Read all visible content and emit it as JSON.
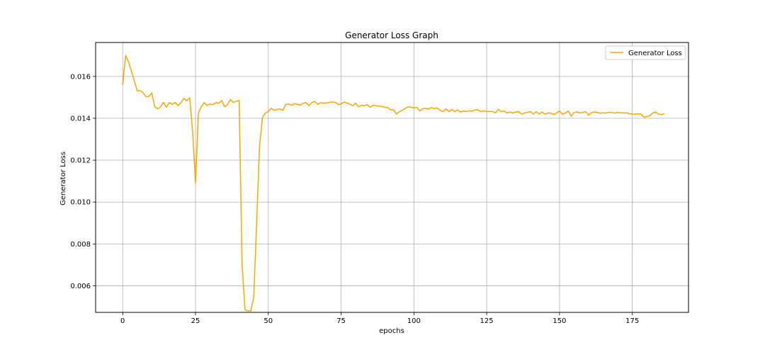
{
  "chart_data": {
    "type": "line",
    "title": "Generator Loss Graph",
    "xlabel": "epochs",
    "ylabel": "Generator Loss",
    "xlim": [
      -9.3,
      194.3
    ],
    "ylim": [
      0.00473,
      0.01762
    ],
    "xticks": [
      0,
      25,
      50,
      75,
      100,
      125,
      150,
      175
    ],
    "xtick_labels": [
      "0",
      "25",
      "50",
      "75",
      "100",
      "125",
      "150",
      "175"
    ],
    "yticks": [
      0.006,
      0.008,
      0.01,
      0.012,
      0.014,
      0.016
    ],
    "ytick_labels": [
      "0.006",
      "0.008",
      "0.010",
      "0.012",
      "0.014",
      "0.016"
    ],
    "grid": true,
    "legend": {
      "position": "top-right",
      "entries": [
        "Generator Loss"
      ]
    },
    "series": [
      {
        "name": "Generator Loss",
        "color": "#ffa500",
        "x_start": 0,
        "x_step": 1,
        "values": [
          0.0156,
          0.017,
          0.0167,
          0.01625,
          0.01578,
          0.0153,
          0.01533,
          0.01522,
          0.01503,
          0.01505,
          0.01521,
          0.01455,
          0.01445,
          0.01455,
          0.01476,
          0.01453,
          0.01475,
          0.01467,
          0.01476,
          0.0146,
          0.01475,
          0.01495,
          0.01484,
          0.01498,
          0.0134,
          0.0109,
          0.01425,
          0.01455,
          0.01475,
          0.01461,
          0.01468,
          0.01465,
          0.01475,
          0.01472,
          0.01485,
          0.01455,
          0.01465,
          0.0149,
          0.01475,
          0.01482,
          0.01485,
          0.007,
          0.00485,
          0.0048,
          0.0048,
          0.00545,
          0.009,
          0.0127,
          0.01405,
          0.01425,
          0.01432,
          0.01448,
          0.01438,
          0.01442,
          0.01445,
          0.01438,
          0.01466,
          0.01468,
          0.01462,
          0.0147,
          0.01466,
          0.01463,
          0.01472,
          0.01475,
          0.0146,
          0.01476,
          0.0148,
          0.01466,
          0.01475,
          0.01472,
          0.01473,
          0.01476,
          0.01478,
          0.01476,
          0.01466,
          0.01468,
          0.01478,
          0.01472,
          0.01468,
          0.0146,
          0.01472,
          0.01455,
          0.01462,
          0.0146,
          0.01465,
          0.01453,
          0.01462,
          0.0146,
          0.01458,
          0.01457,
          0.01452,
          0.01452,
          0.0144,
          0.01441,
          0.0142,
          0.01432,
          0.01438,
          0.01447,
          0.01455,
          0.01453,
          0.0145,
          0.01452,
          0.01435,
          0.01445,
          0.01448,
          0.01443,
          0.01452,
          0.01446,
          0.0145,
          0.01438,
          0.01432,
          0.01445,
          0.01432,
          0.01442,
          0.01432,
          0.0144,
          0.0143,
          0.01435,
          0.01432,
          0.01436,
          0.01434,
          0.0144,
          0.0144,
          0.01432,
          0.01436,
          0.01432,
          0.01433,
          0.01432,
          0.01425,
          0.01443,
          0.01432,
          0.01435,
          0.01425,
          0.0143,
          0.01425,
          0.0143,
          0.01432,
          0.0142,
          0.01425,
          0.01428,
          0.01432,
          0.0142,
          0.01432,
          0.0142,
          0.0143,
          0.0142,
          0.01425,
          0.01425,
          0.01418,
          0.01425,
          0.01435,
          0.0142,
          0.01425,
          0.01435,
          0.0141,
          0.01428,
          0.0143,
          0.01425,
          0.01428,
          0.01432,
          0.01415,
          0.01427,
          0.0143,
          0.01428,
          0.01424,
          0.01426,
          0.01425,
          0.01428,
          0.01427,
          0.01425,
          0.01428,
          0.01426,
          0.01425,
          0.01426,
          0.01422,
          0.0142,
          0.0142,
          0.01422,
          0.0142,
          0.01405,
          0.01408,
          0.01412,
          0.01425,
          0.0143,
          0.0142,
          0.01418,
          0.01422
        ]
      }
    ]
  }
}
